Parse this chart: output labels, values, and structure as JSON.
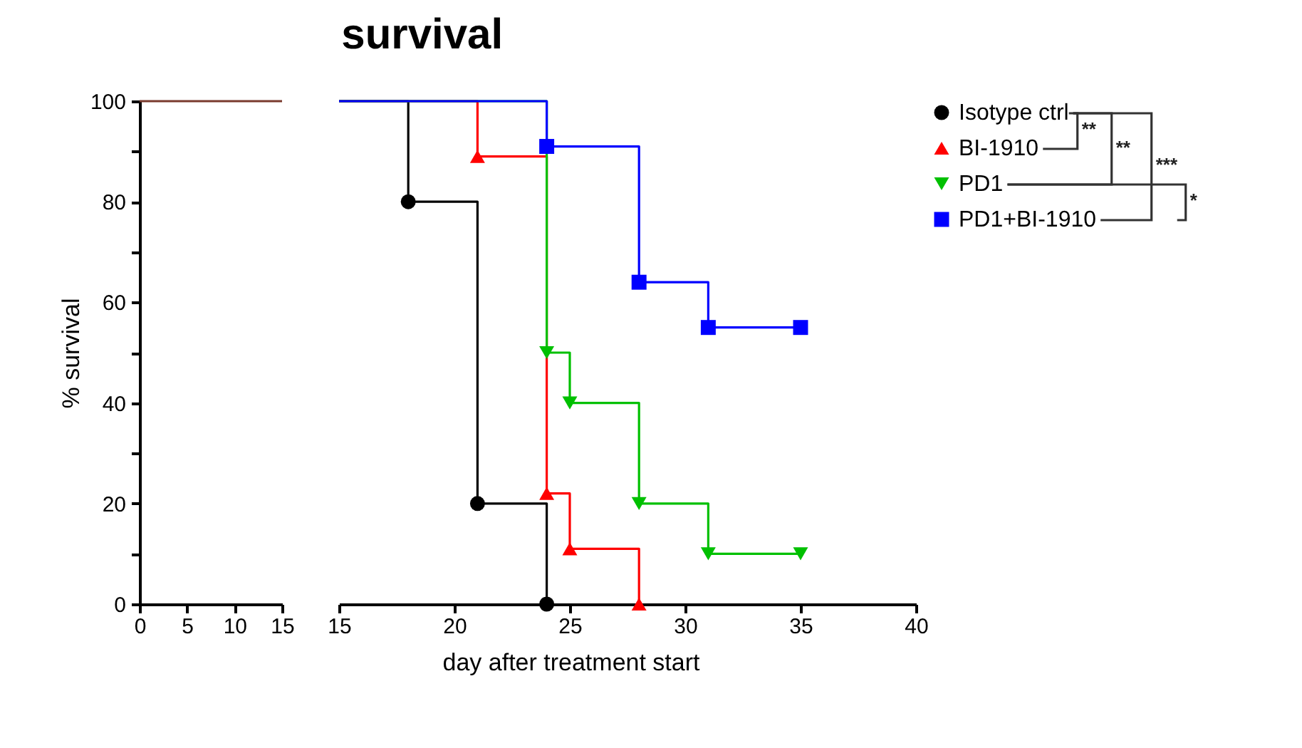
{
  "chart_data": [
    {
      "type": "step",
      "ylabel": "% survival",
      "xlim": [
        0,
        15
      ],
      "xticks": [
        0,
        5,
        10,
        15
      ],
      "ylim": [
        0,
        100
      ],
      "yticks": [
        0,
        {
          "value": 10,
          "label": null
        },
        20,
        {
          "value": 30,
          "label": null
        },
        40,
        {
          "value": 50,
          "label": null
        },
        60,
        {
          "value": 70,
          "label": null
        },
        80,
        {
          "value": 90,
          "label": null
        },
        100
      ],
      "grid": false,
      "marker": "none",
      "series": [
        {
          "color": "#7a3b2e",
          "x": [
            0,
            15
          ],
          "values": [
            100,
            100
          ]
        }
      ]
    },
    {
      "type": "step",
      "title": "survival",
      "xlabel": "day after treatment start",
      "xlim": [
        15,
        40
      ],
      "xticks": [
        15,
        20,
        25,
        30,
        35,
        40
      ],
      "ylim": [
        0,
        100
      ],
      "tick_labels": "x",
      "grid": false,
      "legend": "top right",
      "annotations": [
        "**",
        "**",
        "***",
        "*"
      ],
      "series": [
        {
          "name": "Isotype ctrl",
          "color": "#000000",
          "marker": "circle",
          "x": [
            15,
            18,
            21,
            24
          ],
          "values": [
            100,
            80,
            20,
            0
          ]
        },
        {
          "name": "BI-1910",
          "color": "#ff0000",
          "marker": "triangle",
          "x": [
            15,
            21,
            24,
            25,
            28
          ],
          "values": [
            100,
            89,
            22,
            11,
            0
          ]
        },
        {
          "name": "PD1",
          "color": "#00c000",
          "marker": "triangle-down",
          "x": [
            15,
            24,
            25,
            28,
            31,
            35
          ],
          "values": [
            100,
            50,
            40,
            20,
            10,
            10
          ]
        },
        {
          "name": "PD1+BI-1910",
          "color": "#0000ff",
          "marker": "square",
          "x": [
            15,
            24,
            28,
            31,
            35
          ],
          "values": [
            100,
            91,
            64,
            55,
            55
          ]
        }
      ]
    }
  ]
}
